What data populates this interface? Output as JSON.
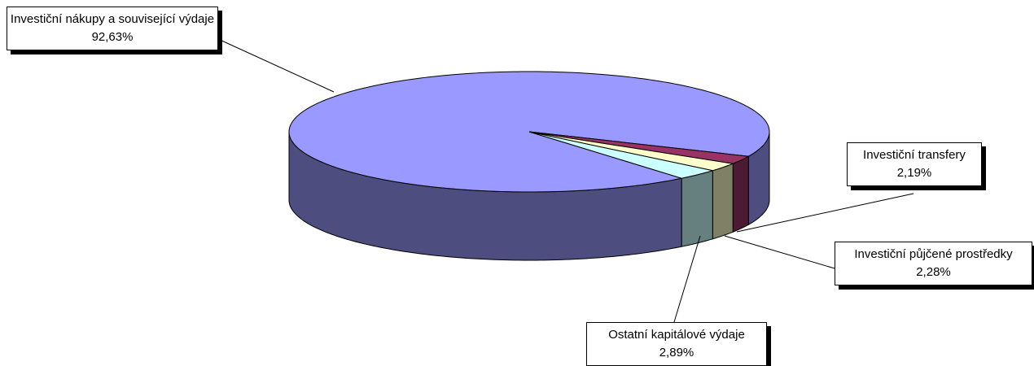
{
  "chart_data": {
    "type": "pie3d",
    "categories": [
      "Investiční nákupy a související výdaje",
      "Investiční transfery",
      "Investiční půjčené prostředky",
      "Ostatní kapitálové výdaje"
    ],
    "values": [
      92.63,
      2.19,
      2.28,
      2.89
    ],
    "value_labels": [
      "92,63%",
      "2,19%",
      "2,28%",
      "2,89%"
    ],
    "colors": [
      "#9999ff",
      "#993366",
      "#ffffcc",
      "#ccffff"
    ]
  }
}
